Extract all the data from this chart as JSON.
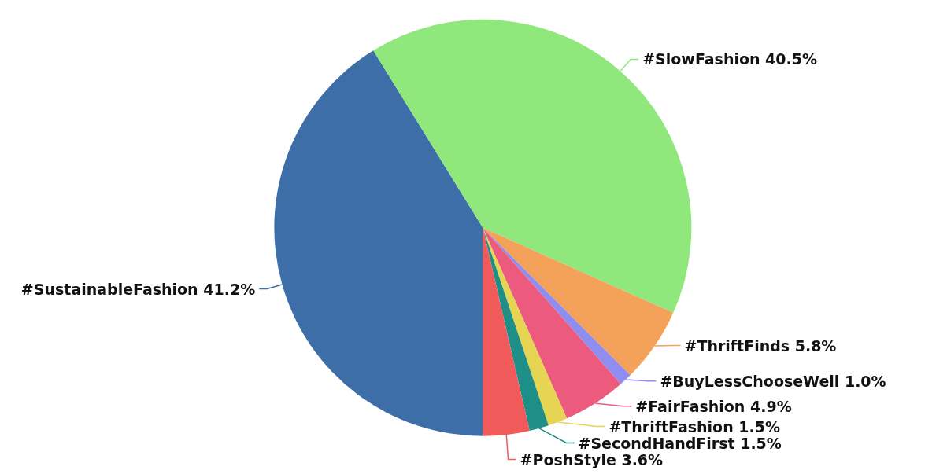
{
  "chart_data": {
    "type": "pie",
    "categories": [
      "#SustainableFashion",
      "#SlowFashion",
      "#ThriftFinds",
      "#BuyLessChooseWell",
      "#FairFashion",
      "#ThriftFashion",
      "#SecondHandFirst",
      "#PoshStyle"
    ],
    "values": [
      41.2,
      40.5,
      5.8,
      1.0,
      4.9,
      1.5,
      1.5,
      3.6
    ],
    "value_labels": [
      "41.2%",
      "40.5%",
      "5.8%",
      "1.0%",
      "4.9%",
      "1.5%",
      "1.5%",
      "3.6%"
    ],
    "colors": [
      "#3e6ea8",
      "#90e87c",
      "#f4a15a",
      "#8f8ef0",
      "#ec5a7e",
      "#e5d552",
      "#1e8f86",
      "#f05a5a"
    ],
    "legend": false
  }
}
